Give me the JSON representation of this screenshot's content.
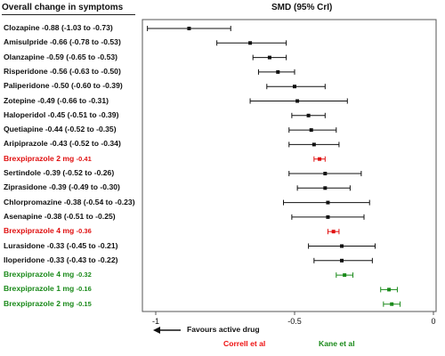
{
  "header": {
    "left_title": "Overall change in symptoms",
    "right_title": "SMD (95% CrI)"
  },
  "footer": {
    "arrow_label": "Favours active drug",
    "source_correll": "Correll et al",
    "source_kane": "Kane et al"
  },
  "colors": {
    "default": "#111111",
    "correll": "#e01010",
    "kane": "#1a8a1a"
  },
  "chart_data": {
    "type": "forest",
    "title": "",
    "xlabel": "SMD (95% CrI)",
    "xlim": [
      -1.05,
      0
    ],
    "xticks": [
      -1,
      -0.5,
      0
    ],
    "xtick_labels": [
      "-1",
      "-0.5",
      "0"
    ],
    "rows": [
      {
        "name": "Clozapine",
        "label": "Clozapine",
        "value_text": "-0.88 (-1.03 to -0.73)",
        "est": -0.88,
        "lo": -1.03,
        "hi": -0.73,
        "group": "default"
      },
      {
        "name": "Amisulpride",
        "label": "Amisulpride",
        "value_text": "-0.66 (-0.78 to -0.53)",
        "est": -0.66,
        "lo": -0.78,
        "hi": -0.53,
        "group": "default"
      },
      {
        "name": "Olanzapine",
        "label": "Olanzapine",
        "value_text": "-0.59 (-0.65 to -0.53)",
        "est": -0.59,
        "lo": -0.65,
        "hi": -0.53,
        "group": "default"
      },
      {
        "name": "Risperidone",
        "label": "Risperidone",
        "value_text": "-0.56 (-0.63 to -0.50)",
        "est": -0.56,
        "lo": -0.63,
        "hi": -0.5,
        "group": "default"
      },
      {
        "name": "Paliperidone",
        "label": "Paliperidone",
        "value_text": "-0.50 (-0.60 to -0.39)",
        "est": -0.5,
        "lo": -0.6,
        "hi": -0.39,
        "group": "default"
      },
      {
        "name": "Zotepine",
        "label": "Zotepine",
        "value_text": "-0.49 (-0.66 to -0.31)",
        "est": -0.49,
        "lo": -0.66,
        "hi": -0.31,
        "group": "default"
      },
      {
        "name": "Haloperidol",
        "label": "Haloperidol",
        "value_text": "-0.45 (-0.51 to -0.39)",
        "est": -0.45,
        "lo": -0.51,
        "hi": -0.39,
        "group": "default"
      },
      {
        "name": "Quetiapine",
        "label": "Quetiapine",
        "value_text": "-0.44 (-0.52 to -0.35)",
        "est": -0.44,
        "lo": -0.52,
        "hi": -0.35,
        "group": "default"
      },
      {
        "name": "Aripiprazole",
        "label": "Aripiprazole",
        "value_text": "-0.43 (-0.52 to -0.34)",
        "est": -0.43,
        "lo": -0.52,
        "hi": -0.34,
        "group": "default"
      },
      {
        "name": "Brexpiprazole 2 mg",
        "label": "Brexpiprazole 2 mg",
        "value_text": "-0.41",
        "est": -0.41,
        "lo": -0.43,
        "hi": -0.39,
        "group": "correll"
      },
      {
        "name": "Sertindole",
        "label": "Sertindole",
        "value_text": "-0.39 (-0.52 to -0.26)",
        "est": -0.39,
        "lo": -0.52,
        "hi": -0.26,
        "group": "default"
      },
      {
        "name": "Ziprasidone",
        "label": "Ziprasidone",
        "value_text": "-0.39 (-0.49 to -0.30)",
        "est": -0.39,
        "lo": -0.49,
        "hi": -0.3,
        "group": "default"
      },
      {
        "name": "Chlorpromazine",
        "label": "Chlorpromazine",
        "value_text": "-0.38 (-0.54 to -0.23)",
        "est": -0.38,
        "lo": -0.54,
        "hi": -0.23,
        "group": "default"
      },
      {
        "name": "Asenapine",
        "label": "Asenapine",
        "value_text": "-0.38 (-0.51 to -0.25)",
        "est": -0.38,
        "lo": -0.51,
        "hi": -0.25,
        "group": "default"
      },
      {
        "name": "Brexpiprazole 4 mg",
        "label": "Brexpiprazole 4 mg",
        "value_text": "-0.36",
        "est": -0.36,
        "lo": -0.38,
        "hi": -0.34,
        "group": "correll"
      },
      {
        "name": "Lurasidone",
        "label": "Lurasidone",
        "value_text": "-0.33 (-0.45 to -0.21)",
        "est": -0.33,
        "lo": -0.45,
        "hi": -0.21,
        "group": "default"
      },
      {
        "name": "Iloperidone",
        "label": "Iloperidone",
        "value_text": "-0.33 (-0.43 to -0.22)",
        "est": -0.33,
        "lo": -0.43,
        "hi": -0.22,
        "group": "default"
      },
      {
        "name": "Brexpiprazole 4 mg",
        "label": "Brexpiprazole 4 mg",
        "value_text": "-0.32",
        "est": -0.32,
        "lo": -0.35,
        "hi": -0.29,
        "group": "kane"
      },
      {
        "name": "Brexpiprazole 1 mg",
        "label": "Brexpiprazole 1 mg",
        "value_text": "-0.16",
        "est": -0.16,
        "lo": -0.19,
        "hi": -0.13,
        "group": "kane"
      },
      {
        "name": "Brexpiprazole 2 mg",
        "label": "Brexpiprazole 2 mg",
        "value_text": "-0.15",
        "est": -0.15,
        "lo": -0.18,
        "hi": -0.12,
        "group": "kane"
      }
    ]
  }
}
